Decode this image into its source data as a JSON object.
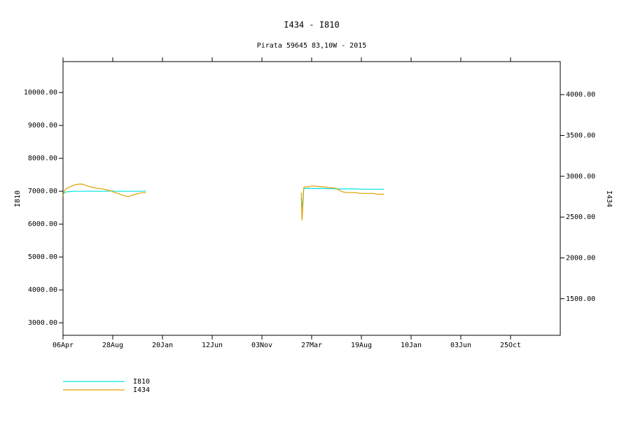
{
  "chart_data": {
    "type": "line",
    "title": "I434 - I810",
    "subtitle": "Pirata 59645 83,10W - 2015",
    "y_label": "I810",
    "y2_label": "I434",
    "x": [
      0,
      5,
      10,
      20,
      30,
      40,
      50,
      60,
      70,
      80,
      90,
      100,
      110,
      120,
      130,
      140,
      150,
      160,
      170,
      180,
      190,
      200,
      210,
      220,
      230,
      240,
      468,
      690,
      692,
      694,
      697,
      700,
      710,
      720,
      730,
      740,
      750,
      760,
      770,
      780,
      790,
      800,
      810,
      820,
      830,
      840,
      850,
      860,
      870,
      880,
      890,
      900,
      910,
      920,
      930
    ],
    "xlim": [
      0,
      1440
    ],
    "xticks": [
      {
        "value": 0,
        "label": "06Apr"
      },
      {
        "value": 144,
        "label": "28Aug"
      },
      {
        "value": 288,
        "label": "20Jan"
      },
      {
        "value": 432,
        "label": "12Jun"
      },
      {
        "value": 576,
        "label": "03Nov"
      },
      {
        "value": 720,
        "label": "27Mar"
      },
      {
        "value": 864,
        "label": "19Aug"
      },
      {
        "value": 1008,
        "label": "10Jan"
      },
      {
        "value": 1152,
        "label": "03Jun"
      },
      {
        "value": 1296,
        "label": "25Oct"
      }
    ],
    "ylim": [
      2620,
      10940
    ],
    "yticks": [
      {
        "value": 3000,
        "label": "3000.00"
      },
      {
        "value": 4000,
        "label": "4000.00"
      },
      {
        "value": 5000,
        "label": "5000.00"
      },
      {
        "value": 6000,
        "label": "6000.00"
      },
      {
        "value": 7000,
        "label": "7000.00"
      },
      {
        "value": 8000,
        "label": "8000.00"
      },
      {
        "value": 9000,
        "label": "9000.00"
      },
      {
        "value": 10000,
        "label": "10000.00"
      }
    ],
    "y2lim": [
      1052,
      4405
    ],
    "y2ticks": [
      {
        "value": 1500,
        "label": "1500.00"
      },
      {
        "value": 2000,
        "label": "2000.00"
      },
      {
        "value": 2500,
        "label": "2500.00"
      },
      {
        "value": 3000,
        "label": "3000.00"
      },
      {
        "value": 3500,
        "label": "3500.00"
      },
      {
        "value": 4000,
        "label": "4000.00"
      }
    ],
    "series": [
      {
        "name": "I810",
        "color": "#00e5e5",
        "values": [
          6940,
          6960,
          6980,
          6990,
          7000,
          7000,
          7000,
          7000,
          7000,
          7000,
          7000,
          7000,
          7000,
          7000,
          7000,
          7010,
          7000,
          7000,
          7000,
          7000,
          7000,
          7000,
          7000,
          7000,
          7000,
          7010,
          null,
          6800,
          6500,
          6700,
          7080,
          7080,
          7080,
          7080,
          7080,
          7080,
          7080,
          7080,
          7080,
          7080,
          7070,
          7070,
          7070,
          7070,
          7070,
          7070,
          7070,
          7060,
          7060,
          7060,
          7060,
          7060,
          7060,
          7060,
          7060
        ]
      },
      {
        "name": "I434",
        "color": "#e0a000",
        "axis": "y2",
        "values": [
          2760,
          2830,
          2850,
          2870,
          2890,
          2900,
          2905,
          2900,
          2880,
          2870,
          2860,
          2850,
          2850,
          2840,
          2830,
          2820,
          2800,
          2790,
          2770,
          2760,
          2750,
          2770,
          2780,
          2790,
          2800,
          2800,
          null,
          2800,
          2460,
          2600,
          2860,
          2870,
          2870,
          2880,
          2880,
          2875,
          2870,
          2870,
          2860,
          2860,
          2850,
          2830,
          2810,
          2800,
          2800,
          2800,
          2800,
          2790,
          2790,
          2790,
          2790,
          2790,
          2780,
          2780,
          2780
        ]
      }
    ]
  }
}
